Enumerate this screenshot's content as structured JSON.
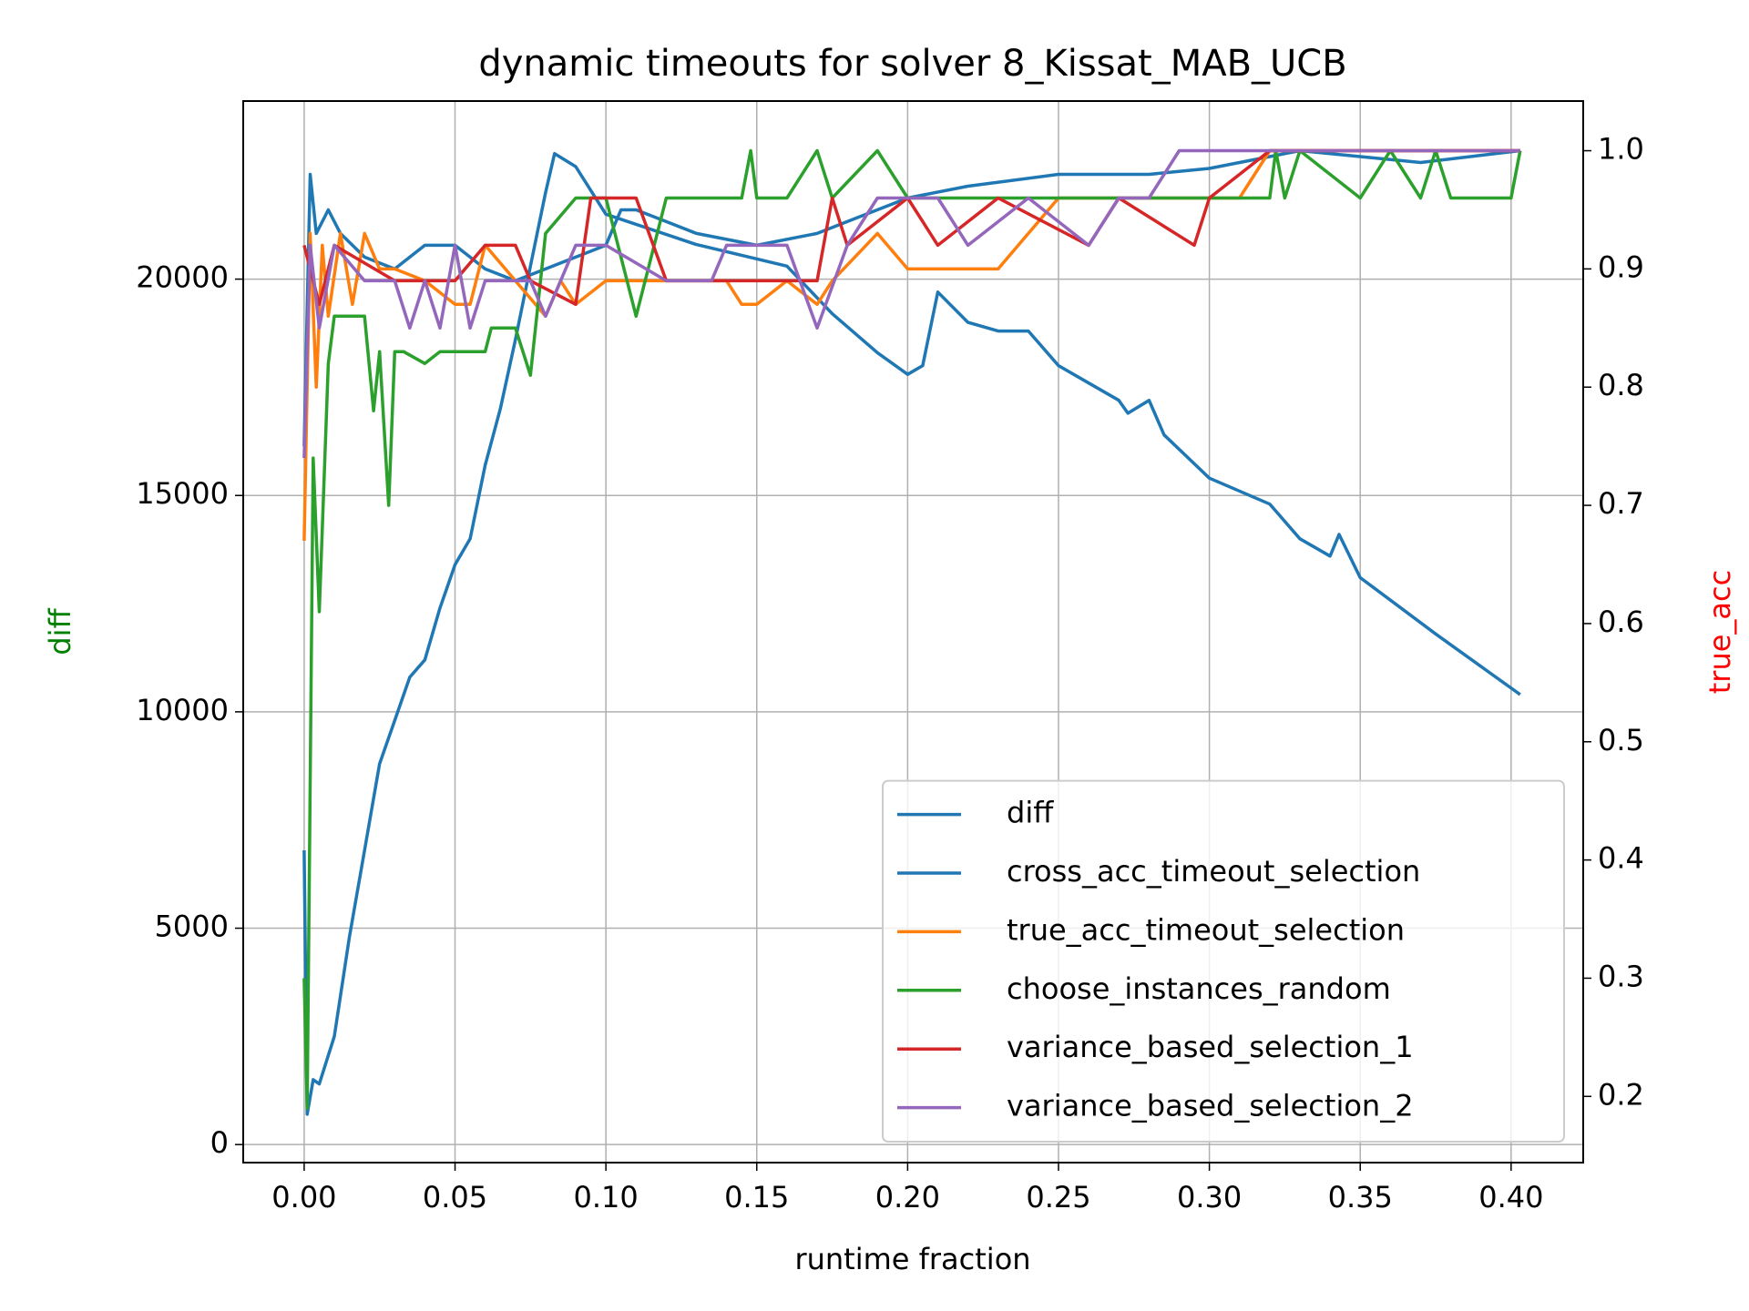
{
  "chart_data": {
    "type": "line",
    "title": "dynamic timeouts for solver 8_Kissat_MAB_UCB",
    "x_label": "runtime fraction",
    "y_label": "diff",
    "y2_label": "true_acc",
    "y_label_color": "green",
    "y2_label_color": "red",
    "xlim": [
      -0.0202,
      0.4239
    ],
    "ylim": [
      -417,
      24115
    ],
    "y2lim": [
      0.144,
      1.042
    ],
    "xticks": [
      {
        "value": 0,
        "label": "0.00"
      },
      {
        "value": 0.05,
        "label": "0.05"
      },
      {
        "value": 0.1,
        "label": "0.10"
      },
      {
        "value": 0.15,
        "label": "0.15"
      },
      {
        "value": 0.2,
        "label": "0.20"
      },
      {
        "value": 0.25,
        "label": "0.25"
      },
      {
        "value": 0.3,
        "label": "0.30"
      },
      {
        "value": 0.35,
        "label": "0.35"
      },
      {
        "value": 0.4,
        "label": "0.40"
      }
    ],
    "yticks": [
      0,
      5000,
      10000,
      15000,
      20000
    ],
    "y2ticks": [
      0.2,
      0.3,
      0.4,
      0.5,
      0.6,
      0.7,
      0.8,
      0.9,
      {
        "value": 1,
        "label": "1.0"
      }
    ],
    "grid": true,
    "legend": "lower right",
    "series": [
      {
        "name": "diff",
        "color": "#1f77b4",
        "axis": "y",
        "x": [
          0,
          0.001,
          0.003,
          0.005,
          0.01,
          0.015,
          0.02,
          0.025,
          0.03,
          0.035,
          0.04,
          0.045,
          0.05,
          0.055,
          0.06,
          0.065,
          0.07,
          0.075,
          0.08,
          0.083,
          0.09,
          0.1,
          0.13,
          0.16,
          0.175,
          0.19,
          0.2,
          0.205,
          0.21,
          0.22,
          0.23,
          0.24,
          0.25,
          0.26,
          0.27,
          0.273,
          0.28,
          0.285,
          0.3,
          0.32,
          0.33,
          0.34,
          0.343,
          0.35,
          0.375,
          0.403
        ],
        "values": [
          6800,
          700,
          1500,
          1400,
          2500,
          4800,
          6800,
          8800,
          9800,
          10800,
          11200,
          12400,
          13400,
          14000,
          15700,
          17000,
          18600,
          20300,
          22000,
          22900,
          22600,
          21500,
          20800,
          20300,
          19200,
          18300,
          17800,
          18000,
          19700,
          19000,
          18800,
          18800,
          18000,
          17600,
          17200,
          16900,
          17200,
          16400,
          15400,
          14800,
          14000,
          13600,
          14100,
          13100,
          11800,
          10400
        ]
      },
      {
        "name": "cross_acc_timeout_selection",
        "color": "#1f77b4",
        "axis": "y2",
        "x": [
          0,
          0.002,
          0.004,
          0.008,
          0.012,
          0.02,
          0.03,
          0.04,
          0.05,
          0.06,
          0.07,
          0.08,
          0.09,
          0.1,
          0.105,
          0.11,
          0.12,
          0.13,
          0.15,
          0.17,
          0.18,
          0.2,
          0.22,
          0.25,
          0.28,
          0.3,
          0.33,
          0.35,
          0.37,
          0.403
        ],
        "values": [
          0.75,
          0.98,
          0.93,
          0.95,
          0.93,
          0.91,
          0.9,
          0.92,
          0.92,
          0.9,
          0.89,
          0.9,
          0.91,
          0.92,
          0.95,
          0.95,
          0.94,
          0.93,
          0.92,
          0.93,
          0.94,
          0.96,
          0.97,
          0.98,
          0.98,
          0.985,
          1,
          0.995,
          0.99,
          1
        ]
      },
      {
        "name": "true_acc_timeout_selection",
        "color": "#ff7f0e",
        "axis": "y2",
        "x": [
          0,
          0.002,
          0.004,
          0.006,
          0.008,
          0.012,
          0.016,
          0.02,
          0.025,
          0.03,
          0.04,
          0.05,
          0.055,
          0.06,
          0.07,
          0.08,
          0.085,
          0.09,
          0.1,
          0.14,
          0.145,
          0.15,
          0.16,
          0.17,
          0.175,
          0.19,
          0.2,
          0.23,
          0.24,
          0.25,
          0.31,
          0.32,
          0.403
        ],
        "values": [
          0.67,
          0.93,
          0.8,
          0.92,
          0.86,
          0.93,
          0.87,
          0.93,
          0.9,
          0.9,
          0.89,
          0.87,
          0.87,
          0.92,
          0.89,
          0.86,
          0.89,
          0.87,
          0.89,
          0.89,
          0.87,
          0.87,
          0.89,
          0.87,
          0.89,
          0.93,
          0.9,
          0.9,
          0.93,
          0.96,
          0.96,
          1,
          1
        ]
      },
      {
        "name": "choose_instances_random",
        "color": "#2ca02c",
        "axis": "y2",
        "x": [
          0,
          0.001,
          0.003,
          0.005,
          0.008,
          0.01,
          0.015,
          0.02,
          0.023,
          0.025,
          0.028,
          0.03,
          0.033,
          0.04,
          0.045,
          0.06,
          0.062,
          0.07,
          0.075,
          0.08,
          0.09,
          0.1,
          0.11,
          0.12,
          0.145,
          0.148,
          0.15,
          0.16,
          0.17,
          0.175,
          0.19,
          0.2,
          0.32,
          0.322,
          0.325,
          0.33,
          0.35,
          0.36,
          0.37,
          0.375,
          0.38,
          0.4,
          0.403
        ],
        "values": [
          0.3,
          0.19,
          0.74,
          0.61,
          0.82,
          0.86,
          0.86,
          0.86,
          0.78,
          0.83,
          0.7,
          0.83,
          0.83,
          0.82,
          0.83,
          0.83,
          0.85,
          0.85,
          0.81,
          0.93,
          0.96,
          0.96,
          0.86,
          0.96,
          0.96,
          1,
          0.96,
          0.96,
          1,
          0.96,
          1,
          0.96,
          0.96,
          1,
          0.96,
          1,
          0.96,
          1,
          0.96,
          1,
          0.96,
          0.96,
          1
        ]
      },
      {
        "name": "variance_based_selection_1",
        "color": "#d62728",
        "axis": "y2",
        "x": [
          0,
          0.005,
          0.01,
          0.03,
          0.05,
          0.06,
          0.07,
          0.075,
          0.09,
          0.095,
          0.11,
          0.12,
          0.17,
          0.175,
          0.18,
          0.2,
          0.21,
          0.23,
          0.26,
          0.27,
          0.295,
          0.3,
          0.32,
          0.403
        ],
        "values": [
          0.92,
          0.87,
          0.92,
          0.89,
          0.89,
          0.92,
          0.92,
          0.89,
          0.87,
          0.96,
          0.96,
          0.89,
          0.89,
          0.96,
          0.92,
          0.96,
          0.92,
          0.96,
          0.92,
          0.96,
          0.92,
          0.96,
          1,
          1
        ]
      },
      {
        "name": "variance_based_selection_2",
        "color": "#9467bd",
        "axis": "y2",
        "x": [
          0,
          0.002,
          0.005,
          0.01,
          0.02,
          0.03,
          0.035,
          0.04,
          0.045,
          0.05,
          0.055,
          0.06,
          0.075,
          0.08,
          0.09,
          0.1,
          0.12,
          0.135,
          0.14,
          0.16,
          0.17,
          0.18,
          0.19,
          0.21,
          0.22,
          0.24,
          0.26,
          0.27,
          0.28,
          0.29,
          0.403
        ],
        "values": [
          0.74,
          0.92,
          0.85,
          0.92,
          0.89,
          0.89,
          0.85,
          0.89,
          0.85,
          0.92,
          0.85,
          0.89,
          0.89,
          0.86,
          0.92,
          0.92,
          0.89,
          0.89,
          0.92,
          0.92,
          0.85,
          0.92,
          0.96,
          0.96,
          0.92,
          0.96,
          0.92,
          0.96,
          0.96,
          1,
          1
        ]
      }
    ]
  }
}
